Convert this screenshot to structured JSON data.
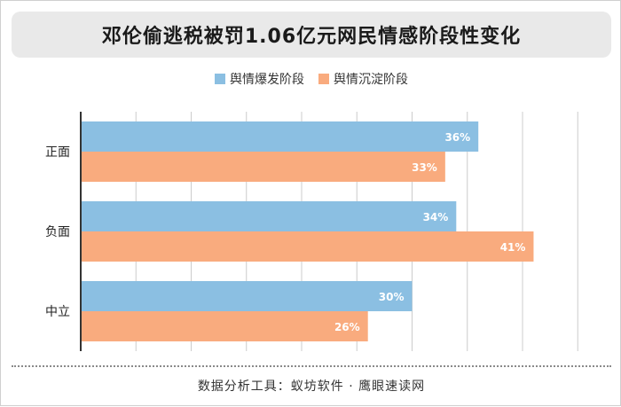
{
  "title": "邓伦偷逃税被罚1.06亿元网民情感阶段性变化",
  "footer": "数据分析工具：蚁坊软件 · 鹰眼速读网",
  "chart_data": {
    "type": "bar",
    "orientation": "horizontal",
    "categories": [
      "正面",
      "负面",
      "中立"
    ],
    "series": [
      {
        "name": "舆情爆发阶段",
        "values": [
          36,
          34,
          30
        ],
        "labels": [
          "36%",
          "34%",
          "30%"
        ],
        "color": "#8bbfe2"
      },
      {
        "name": "舆情沉淀阶段",
        "values": [
          33,
          41,
          26
        ],
        "labels": [
          "33%",
          "41%",
          "26%"
        ],
        "color": "#f9ab7e"
      }
    ],
    "xlim": [
      0,
      45
    ],
    "grid": true,
    "legend_position": "top-center",
    "axis_color": "#333333",
    "grid_color": "#cccccc",
    "label_color": "#ffffff"
  }
}
